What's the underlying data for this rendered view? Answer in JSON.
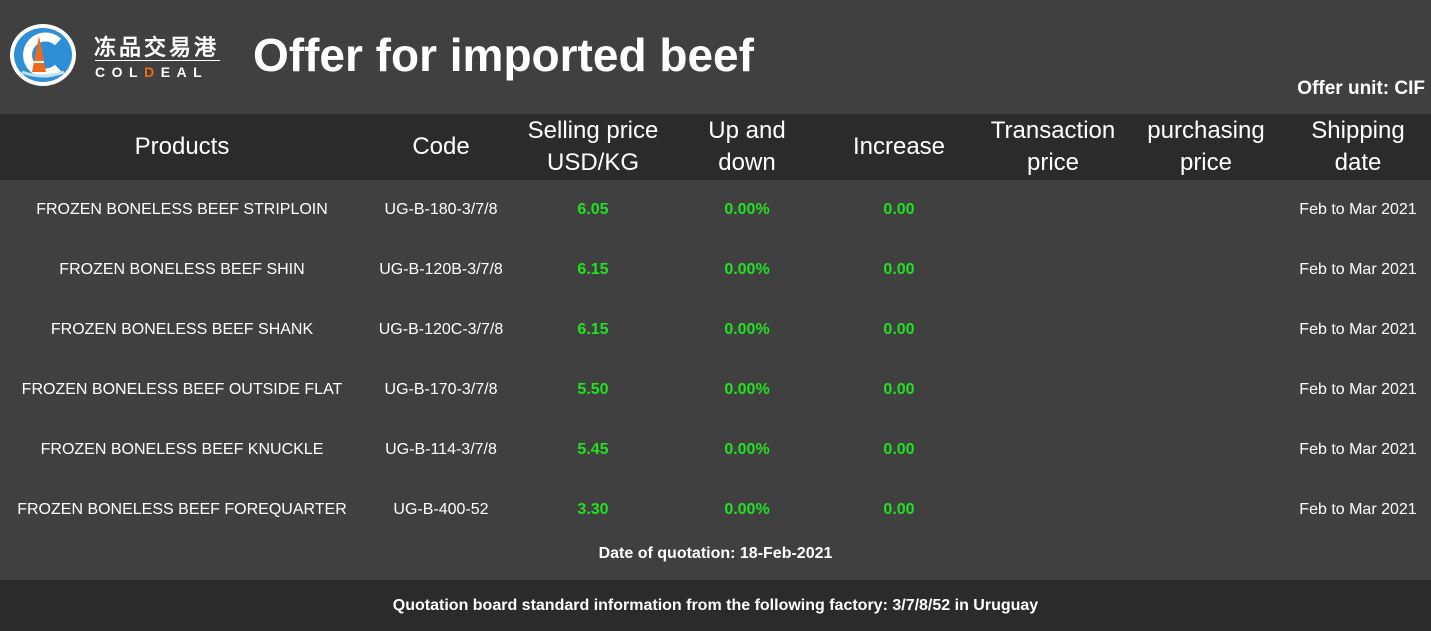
{
  "brand": {
    "name_cn": "冻品交易港",
    "name_en_prefix": "COL",
    "name_en_accent": "D",
    "name_en_suffix": "EAL",
    "colors": {
      "accent": "#f06a1d",
      "logo_blue": "#2f8fd6"
    }
  },
  "title": "Offer for imported beef",
  "offer_unit": "Offer unit:  CIF",
  "table": {
    "headers": [
      {
        "l1": "Products",
        "l2": ""
      },
      {
        "l1": "Code",
        "l2": ""
      },
      {
        "l1": "Selling price",
        "l2": "USD/KG"
      },
      {
        "l1": "Up and",
        "l2": "down"
      },
      {
        "l1": "Increase",
        "l2": ""
      },
      {
        "l1": "Transaction",
        "l2": "price"
      },
      {
        "l1": "purchasing",
        "l2": "price"
      },
      {
        "l1": "Shipping",
        "l2": "date"
      }
    ],
    "rows": [
      {
        "product": "FROZEN BONELESS BEEF STRIPLOIN",
        "code": "UG-B-180-3/7/8",
        "price": "6.05",
        "change": "0.00%",
        "increase": "0.00",
        "transaction": "",
        "purchasing": "",
        "shipping": "Feb to Mar 2021"
      },
      {
        "product": "FROZEN BONELESS BEEF SHIN",
        "code": "UG-B-120B-3/7/8",
        "price": "6.15",
        "change": "0.00%",
        "increase": "0.00",
        "transaction": "",
        "purchasing": "",
        "shipping": "Feb to Mar 2021"
      },
      {
        "product": "FROZEN BONELESS BEEF SHANK",
        "code": "UG-B-120C-3/7/8",
        "price": "6.15",
        "change": "0.00%",
        "increase": "0.00",
        "transaction": "",
        "purchasing": "",
        "shipping": "Feb to Mar 2021"
      },
      {
        "product": "FROZEN BONELESS BEEF OUTSIDE FLAT",
        "code": "UG-B-170-3/7/8",
        "price": "5.50",
        "change": "0.00%",
        "increase": "0.00",
        "transaction": "",
        "purchasing": "",
        "shipping": "Feb to Mar 2021"
      },
      {
        "product": "FROZEN BONELESS BEEF KNUCKLE",
        "code": "UG-B-114-3/7/8",
        "price": "5.45",
        "change": "0.00%",
        "increase": "0.00",
        "transaction": "",
        "purchasing": "",
        "shipping": "Feb to Mar 2021"
      },
      {
        "product": "FROZEN BONELESS BEEF FOREQUARTER",
        "code": "UG-B-400-52",
        "price": "3.30",
        "change": "0.00%",
        "increase": "0.00",
        "transaction": "",
        "purchasing": "",
        "shipping": "Feb to Mar 2021"
      }
    ]
  },
  "quotation_date": "Date of quotation:  18-Feb-2021",
  "footer_note": "Quotation board standard information from the following factory: 3/7/8/52 in Uruguay",
  "colors": {
    "background": "#404040",
    "header_band": "#2b2b2b",
    "positive": "#22e022",
    "text": "#ffffff"
  }
}
